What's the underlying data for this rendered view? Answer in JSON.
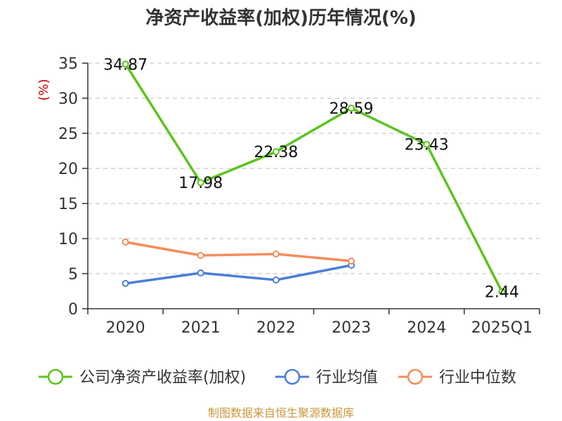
{
  "chart_data": {
    "type": "line",
    "title": "净资产收益率(加权)历年情况(%)",
    "ylabel": "(%)",
    "xlabel": "",
    "categories": [
      "2020",
      "2021",
      "2022",
      "2023",
      "2024",
      "2025Q1"
    ],
    "ylim": [
      0,
      35
    ],
    "yticks": [
      0,
      5,
      10,
      15,
      20,
      25,
      30,
      35
    ],
    "grid": "horizontal-dashed",
    "legend_position": "bottom",
    "series": [
      {
        "name": "公司净资产收益率(加权)",
        "color": "#5bc41f",
        "values": [
          34.87,
          17.98,
          22.38,
          28.59,
          23.43,
          2.44
        ],
        "labels": [
          "34.87",
          "17.98",
          "22.38",
          "28.59",
          "23.43",
          "2.44"
        ]
      },
      {
        "name": "行业均值",
        "color": "#4a7fd6",
        "values": [
          3.6,
          5.1,
          4.1,
          6.2,
          null,
          null
        ]
      },
      {
        "name": "行业中位数",
        "color": "#f58c5a",
        "values": [
          9.5,
          7.6,
          7.8,
          6.8,
          null,
          null
        ]
      }
    ]
  },
  "colors": {
    "ylabel": "#cc0000",
    "source": "#c8963c",
    "axis": "#333333",
    "grid": "#bbbbbb"
  },
  "source_text": "制图数据来自恒生聚源数据库"
}
